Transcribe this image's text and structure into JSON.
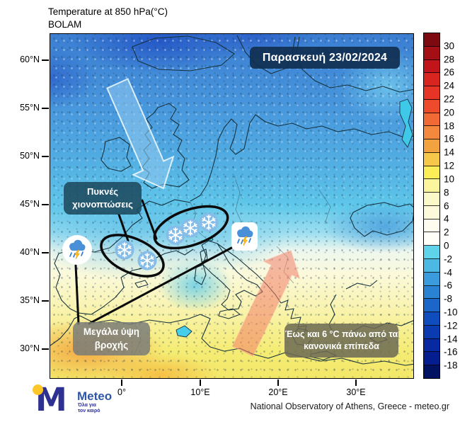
{
  "header": {
    "title_line1": "Temperature at 850 hPa(°C)",
    "title_line2": "BOLAM"
  },
  "map": {
    "date_banner": "Παρασκευή 23/02/2024",
    "labels": {
      "snow_line1": "Πυκνές",
      "snow_line2": "χιονοπτώσεις",
      "rain_line1": "Μεγάλα ύψη",
      "rain_line2": "βροχής",
      "warm_line1": "Έως και 6 °C πάνω από τα",
      "warm_line2": "κανονικά επίπεδα"
    },
    "icons": {
      "snowflake": "snowflake-icon",
      "storm": "storm-cloud-rain-icon",
      "cold_arrow": "cold-advection-arrow",
      "warm_arrow": "warm-advection-arrow"
    },
    "axes": {
      "lat_ticks": [
        "60°N",
        "55°N",
        "50°N",
        "45°N",
        "40°N",
        "35°N",
        "30°N"
      ],
      "lon_ticks": [
        "0°",
        "10°E",
        "20°E",
        "30°E"
      ]
    }
  },
  "colorbar": {
    "labels": [
      "30",
      "28",
      "26",
      "24",
      "22",
      "20",
      "18",
      "16",
      "14",
      "12",
      "10",
      "8",
      "6",
      "4",
      "2",
      "0",
      "-2",
      "-4",
      "-6",
      "-8",
      "-10",
      "-12",
      "-14",
      "-16",
      "-18"
    ],
    "colors": [
      "#7c0a10",
      "#a30f15",
      "#c2151b",
      "#d8251f",
      "#e63426",
      "#ee4a2c",
      "#f16a35",
      "#f4883d",
      "#f2a23f",
      "#f6c748",
      "#fdee58",
      "#fbf59e",
      "#fcf9c8",
      "#fdfadc",
      "#fefcee",
      "#fffef8",
      "#5ed3e9",
      "#4cb9e4",
      "#3a9cdc",
      "#2982d2",
      "#1b66c9",
      "#0f4dbe",
      "#0b3bb1",
      "#0729a2",
      "#041d8f",
      "#021263"
    ]
  },
  "footer": {
    "logo_brand": "Meteo",
    "logo_tagline": "Όλα για\nτον καιρό",
    "attribution": "National Observatory of Athens, Greece - meteo.gr"
  }
}
